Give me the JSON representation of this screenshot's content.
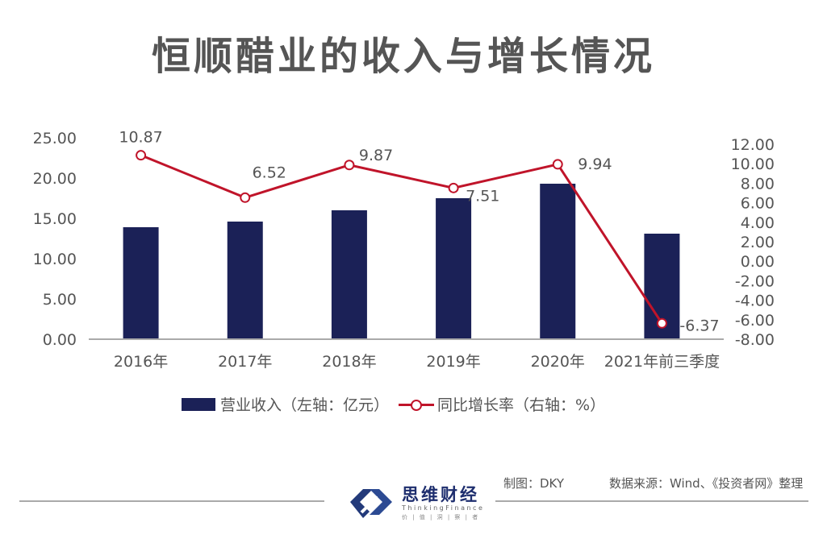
{
  "title": "恒顺醋业的收入与增长情况",
  "chart_data": {
    "type": "bar+line",
    "title": "恒顺醋业的收入与增长情况",
    "categories": [
      "2016年",
      "2017年",
      "2018年",
      "2019年",
      "2020年",
      "2021年前三季度"
    ],
    "series": [
      {
        "name": "营业收入（左轴：亿元）",
        "type": "bar",
        "axis": "left",
        "color": "#1b2157",
        "values": [
          13.9,
          14.6,
          16.0,
          17.5,
          19.3,
          13.1
        ]
      },
      {
        "name": "同比增长率（右轴：%）",
        "type": "line",
        "axis": "right",
        "color": "#c0142a",
        "values": [
          10.87,
          6.52,
          9.87,
          7.51,
          9.94,
          -6.37
        ],
        "labels": [
          "10.87",
          "6.52",
          "9.87",
          "7.51",
          "9.94",
          "-6.37"
        ]
      }
    ],
    "left_axis": {
      "range": [
        0,
        25
      ],
      "ticks": [
        "0.00",
        "5.00",
        "10.00",
        "15.00",
        "20.00",
        "25.00"
      ]
    },
    "right_axis": {
      "range": [
        -8,
        12
      ],
      "ticks": [
        "-8.00",
        "-6.00",
        "-4.00",
        "-2.00",
        "0.00",
        "2.00",
        "4.00",
        "6.00",
        "8.00",
        "10.00",
        "12.00"
      ]
    },
    "grid": false,
    "legend_position": "bottom"
  },
  "legend": {
    "bar_label": "营业收入（左轴：亿元）",
    "line_label": "同比增长率（右轴：%）"
  },
  "footer": {
    "logo_name": "思维财经",
    "logo_en": "ThinkingFinance",
    "logo_tagline": "价 | 值 | 洞 | 察 | 者",
    "author": "制图：DKY",
    "source": "数据来源：Wind、《投资者网》整理"
  }
}
